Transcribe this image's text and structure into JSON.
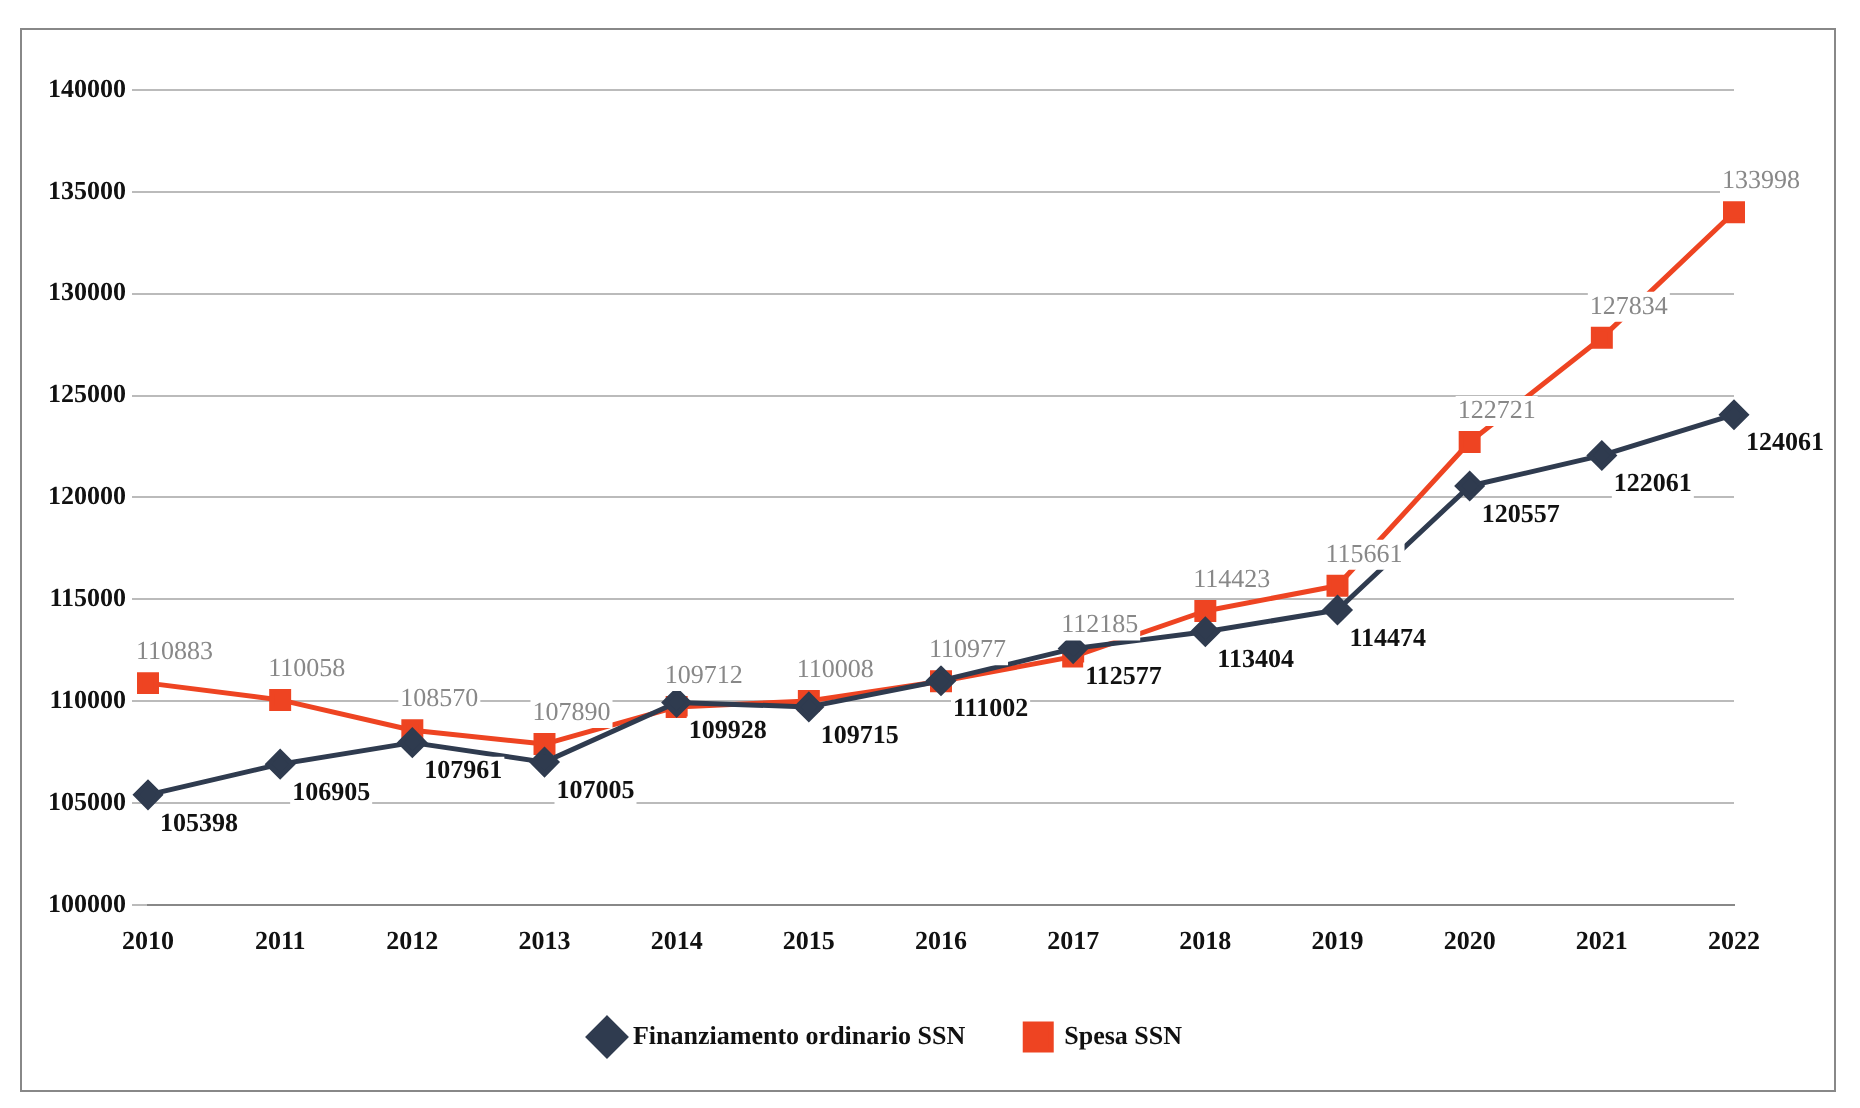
{
  "chart_data": {
    "type": "line",
    "categories": [
      "2010",
      "2011",
      "2012",
      "2013",
      "2014",
      "2015",
      "2016",
      "2017",
      "2018",
      "2019",
      "2020",
      "2021",
      "2022"
    ],
    "series": [
      {
        "name": "Finanziamento ordinario SSN",
        "color": "#2f3b4f",
        "marker": "diamond",
        "values": [
          105398,
          106905,
          107961,
          107005,
          109928,
          109715,
          111002,
          112577,
          113404,
          114474,
          120557,
          122061,
          124061
        ]
      },
      {
        "name": "Spesa SSN",
        "color": "#ee4422",
        "marker": "square",
        "values": [
          110883,
          110058,
          108570,
          107890,
          109712,
          110008,
          110977,
          112185,
          114423,
          115661,
          122721,
          127834,
          133998
        ]
      }
    ],
    "ylim": [
      100000,
      140000
    ],
    "yticks": [
      100000,
      105000,
      110000,
      115000,
      120000,
      125000,
      130000,
      135000,
      140000
    ],
    "grid": "y",
    "legend": "bottom",
    "data_labels": true
  }
}
